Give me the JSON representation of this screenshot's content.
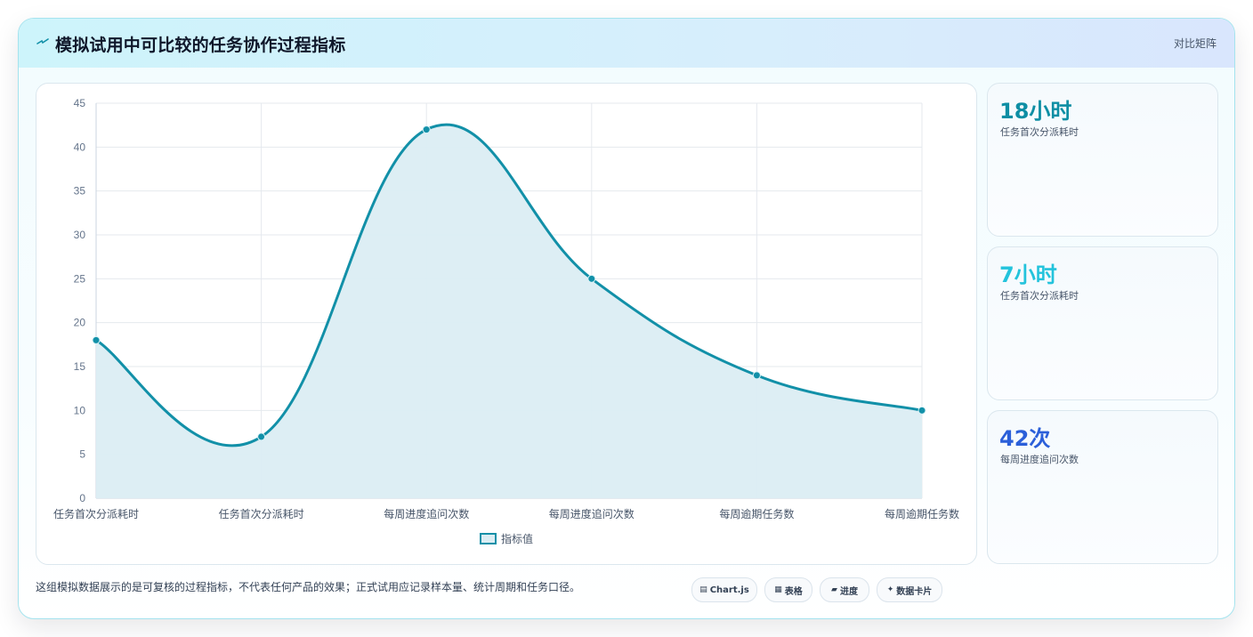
{
  "header": {
    "title": "模拟试用中可比较的任务协作过程指标",
    "right_label": "对比矩阵",
    "icon": "lightning-icon"
  },
  "chart_data": {
    "type": "area",
    "categories": [
      "任务首次分派耗时",
      "任务首次分派耗时",
      "每周进度追问次数",
      "每周进度追问次数",
      "每周逾期任务数",
      "每周逾期任务数"
    ],
    "series": [
      {
        "name": "指标值",
        "values": [
          18,
          7,
          42,
          25,
          14,
          10
        ]
      }
    ],
    "title": "",
    "xlabel": "",
    "ylabel": "",
    "ylim": [
      0,
      45
    ],
    "yticks": [
      0,
      5,
      10,
      15,
      20,
      25,
      30,
      35,
      40,
      45
    ],
    "grid": true,
    "smooth": true,
    "legend": "bottom",
    "colors": {
      "line": "#1290a8",
      "fill": "#dbedf3"
    }
  },
  "stats": [
    {
      "value": "18小时",
      "label": "任务首次分派耗时",
      "color": "#0e8ea4"
    },
    {
      "value": "7小时",
      "label": "任务首次分派耗时",
      "color": "#23c3dc"
    },
    {
      "value": "42次",
      "label": "每周进度追问次数",
      "color": "#2b5fd9"
    }
  ],
  "footer": {
    "note": "这组模拟数据展示的是可复核的过程指标，不代表任何产品的效果；正式试用应记录样本量、统计周期和任务口径。",
    "pills": [
      {
        "icon": "▤",
        "label": "Chart.js"
      },
      {
        "icon": "▦",
        "label": "表格"
      },
      {
        "icon": "▰",
        "label": "进度"
      },
      {
        "icon": "✦",
        "label": "数据卡片"
      }
    ]
  }
}
